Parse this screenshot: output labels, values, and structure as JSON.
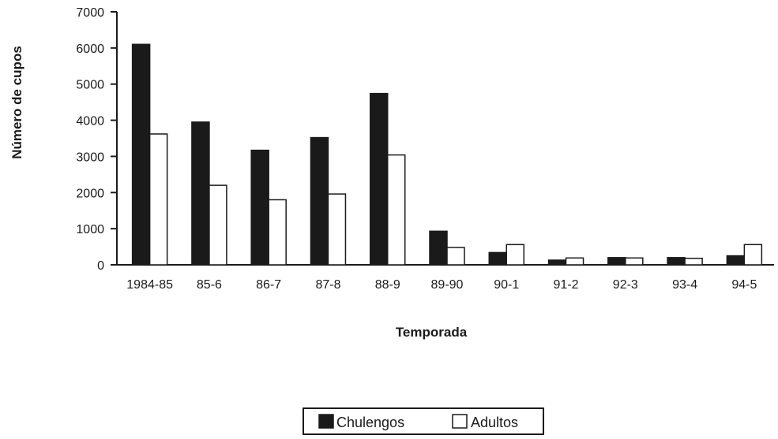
{
  "chart_data": {
    "type": "bar",
    "title": "",
    "xlabel": "Temporada",
    "ylabel": "Número de cupos",
    "categories": [
      "1984-85",
      "85-6",
      "86-7",
      "87-8",
      "88-9",
      "89-90",
      "90-1",
      "91-2",
      "92-3",
      "93-4",
      "94-5"
    ],
    "series": [
      {
        "name": "Chulengos",
        "color": "#1a1a1a",
        "values": [
          6100,
          3950,
          3170,
          3520,
          4740,
          930,
          340,
          130,
          200,
          200,
          250
        ]
      },
      {
        "name": "Adultos",
        "color": "#ffffff",
        "values": [
          3620,
          2200,
          1800,
          1960,
          3040,
          480,
          560,
          190,
          190,
          180,
          560
        ]
      }
    ],
    "ylim": [
      0,
      7000
    ],
    "yticks": [
      0,
      1000,
      2000,
      3000,
      4000,
      5000,
      6000,
      7000
    ],
    "grid": false,
    "legend_position": "bottom-center"
  }
}
